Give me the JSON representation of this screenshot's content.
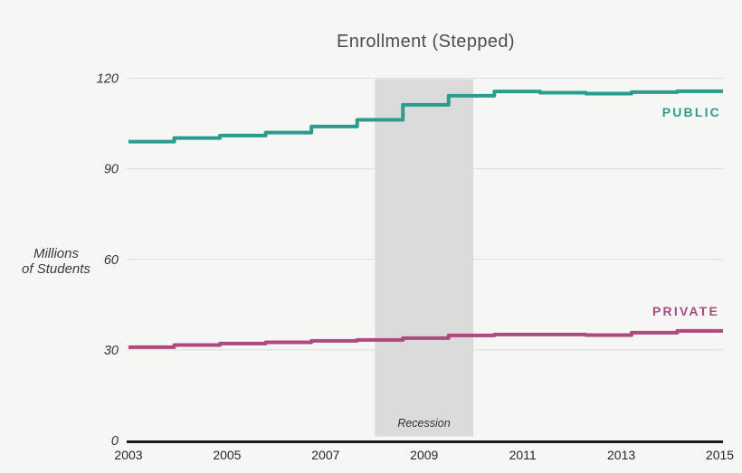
{
  "title": "Enrollment (Stepped)",
  "y_axis": {
    "unit_label_line1": "Millions",
    "unit_label_line2": "of Students",
    "tick_labels": [
      "0",
      "30",
      "60",
      "90",
      "120"
    ]
  },
  "x_axis": {
    "tick_labels": [
      "2003",
      "2005",
      "2007",
      "2009",
      "2011",
      "2013",
      "2015"
    ]
  },
  "colors": {
    "public_line": "#2a9d8f",
    "private_line": "#ad4a7e",
    "recession_band": "#dbdbdb",
    "gridline": "#dcdcda",
    "axis_line": "#1b1b1b",
    "background": "#f6f6f4"
  },
  "chart_data": {
    "type": "line",
    "style": "stepped",
    "title": "Enrollment (Stepped)",
    "ylabel": "Millions of Students",
    "xlabel": "",
    "grid": true,
    "legend_position": "inline-right",
    "x": [
      2003,
      2004,
      2005,
      2006,
      2007,
      2008,
      2009,
      2010,
      2011,
      2012,
      2013,
      2014,
      2015
    ],
    "xticks": [
      2003,
      2005,
      2007,
      2009,
      2011,
      2013,
      2015
    ],
    "yticks": [
      0,
      30,
      60,
      90,
      120
    ],
    "ylim": [
      0,
      120
    ],
    "series": [
      {
        "name": "PUBLIC",
        "color": "#2a9d8f",
        "values": [
          99.0,
          100.2,
          101.0,
          102.0,
          104.0,
          106.2,
          111.2,
          114.2,
          115.6,
          115.2,
          114.9,
          115.4,
          115.7
        ]
      },
      {
        "name": "PRIVATE",
        "color": "#ad4a7e",
        "values": [
          30.9,
          31.6,
          32.1,
          32.5,
          33.0,
          33.3,
          33.9,
          34.8,
          35.1,
          35.1,
          34.9,
          35.7,
          36.3
        ]
      }
    ],
    "annotations": [
      {
        "type": "band",
        "label": "Recession",
        "x_start": 2008,
        "x_end": 2010,
        "color": "#dbdbdb"
      }
    ]
  }
}
